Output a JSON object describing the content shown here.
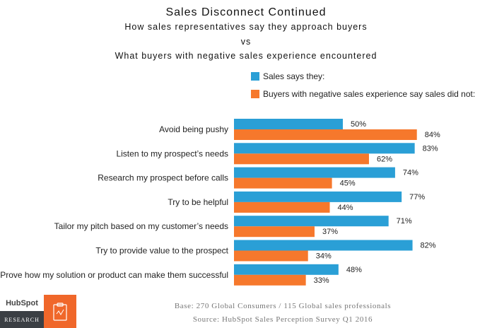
{
  "chart_data": {
    "type": "bar",
    "orientation": "horizontal",
    "title": "Sales Disconnect Continued",
    "subtitles": [
      "How sales representatives say they approach buyers",
      "vs",
      "What buyers with negative sales experience encountered"
    ],
    "categories": [
      "Avoid being pushy",
      "Listen to my prospect’s needs",
      "Research my prospect before calls",
      "Try to be helpful",
      "Tailor my pitch based on my customer’s needs",
      "Try to provide value to the prospect",
      "Prove how my solution or product can make them successful"
    ],
    "series": [
      {
        "name": "Sales says they:",
        "color": "#2a9fd6",
        "values": [
          50,
          83,
          74,
          77,
          71,
          82,
          48
        ]
      },
      {
        "name": "Buyers with negative sales experience say sales did not:",
        "color": "#f6782c",
        "values": [
          84,
          62,
          45,
          44,
          37,
          34,
          33
        ]
      }
    ],
    "value_suffix": "%",
    "xlim": [
      0,
      100
    ],
    "legend_position": "top-right",
    "grid": false
  },
  "footer": {
    "logo_text": "HubSpot",
    "badge_text": "RESEARCH",
    "base_note": "Base: 270 Global Consumers / 115 Global sales professionals",
    "source_note": "Source: HubSpot Sales Perception Survey Q1 2016"
  }
}
